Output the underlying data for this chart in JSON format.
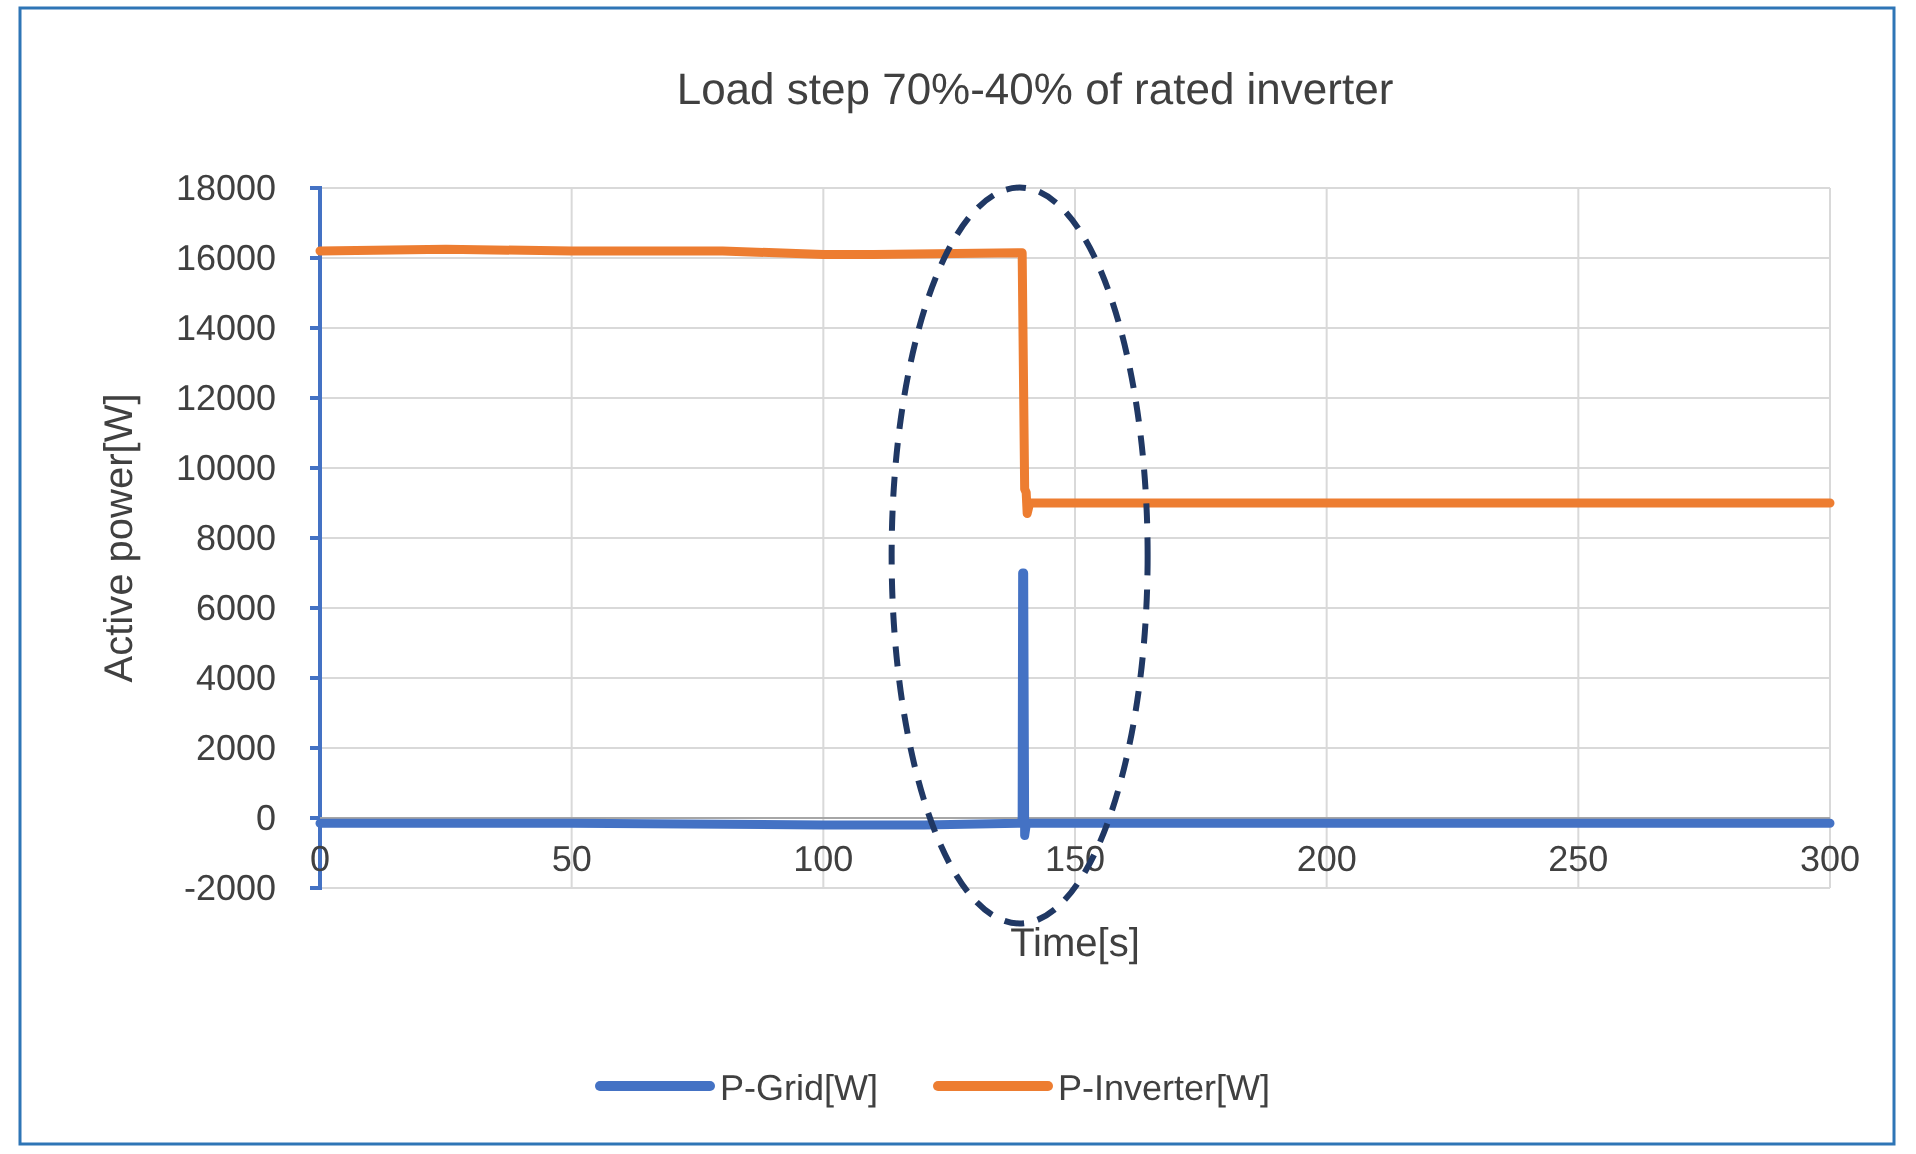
{
  "chart_data": {
    "type": "line",
    "title": "Load step 70%-40% of rated inverter",
    "xlabel": "Time[s]",
    "ylabel": "Active power[W]",
    "xlim": [
      0,
      300
    ],
    "xticks": [
      0,
      50,
      100,
      150,
      200,
      250,
      300
    ],
    "ylim": [
      -2000,
      18000
    ],
    "yticks": [
      -2000,
      0,
      2000,
      4000,
      6000,
      8000,
      10000,
      12000,
      14000,
      16000,
      18000
    ],
    "grid": true,
    "legend": "bottom",
    "marker": "none",
    "line_style": "solid",
    "series": [
      {
        "name": "P-Grid[W]",
        "color": "#4472c4",
        "x": [
          0,
          50,
          100,
          120,
          139.5,
          139.6,
          139.8,
          140,
          140.2,
          140.4,
          141,
          160,
          200,
          250,
          300
        ],
        "values": [
          -150,
          -150,
          -200,
          -200,
          -150,
          7000,
          7000,
          -500,
          -300,
          -150,
          -150,
          -150,
          -150,
          -150,
          -150
        ]
      },
      {
        "name": "P-Inverter[W]",
        "color": "#ed7d31",
        "x": [
          0,
          25,
          50,
          80,
          100,
          110,
          139.5,
          140,
          140.3,
          140.5,
          141,
          160,
          200,
          250,
          300
        ],
        "values": [
          16200,
          16250,
          16200,
          16200,
          16100,
          16100,
          16150,
          9400,
          9300,
          8700,
          9000,
          9000,
          9000,
          9000,
          9000
        ]
      }
    ]
  }
}
